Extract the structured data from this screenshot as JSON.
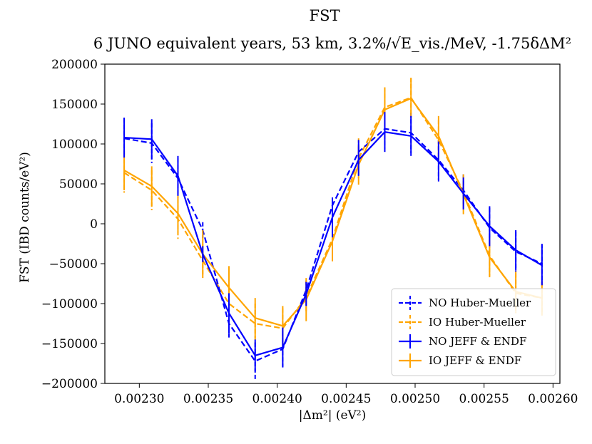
{
  "chart_data": {
    "type": "line",
    "title": "FST",
    "subtitle": "6 JUNO equivalent years, 53 km, 3.2%/√E_vis./MeV, -1.75δΔM²",
    "xlabel": "|Δm²| (eV²)",
    "ylabel": "FST (IBD counts/eV²)",
    "xlim": [
      0.002275,
      0.002605
    ],
    "ylim": [
      -200000,
      200000
    ],
    "xticks": [
      "0.00230",
      "0.00235",
      "0.00240",
      "0.00245",
      "0.00250",
      "0.00255",
      "0.00260"
    ],
    "xtick_values": [
      0.0023,
      0.00235,
      0.0024,
      0.00245,
      0.0025,
      0.00255,
      0.0026
    ],
    "yticks": [
      "200000",
      "150000",
      "100000",
      "50000",
      "0",
      "−50000",
      "−100000",
      "−150000",
      "−200000"
    ],
    "ytick_values": [
      200000,
      150000,
      100000,
      50000,
      0,
      -50000,
      -100000,
      -150000,
      -200000
    ],
    "grid": false,
    "legend_position": "lower-right",
    "x": [
      0.002289,
      0.002309,
      0.002328,
      0.002346,
      0.002365,
      0.002384,
      0.002404,
      0.002421,
      0.00244,
      0.002459,
      0.002478,
      0.002497,
      0.002517,
      0.002535,
      0.002554,
      0.002573,
      0.002592
    ],
    "series": [
      {
        "name": "NO Huber-Mueller",
        "color": "#0000ff",
        "style": "dashed",
        "values": [
          107000,
          101000,
          57000,
          -8000,
          -125000,
          -172000,
          -157000,
          -83000,
          23000,
          90000,
          119000,
          114000,
          80000,
          42000,
          -5000,
          -35000,
          -50000
        ],
        "errors": [
          25000,
          25000,
          25000,
          10000,
          20000,
          23000,
          22000,
          12000,
          8000,
          15000,
          25000,
          25000,
          25000,
          20000,
          25000,
          25000,
          25000
        ]
      },
      {
        "name": "IO Huber-Mueller",
        "color": "#ffa500",
        "style": "dashed",
        "values": [
          64000,
          42000,
          6000,
          -46000,
          -100000,
          -125000,
          -131000,
          -92000,
          -19000,
          82000,
          146000,
          158000,
          105000,
          40000,
          -40000,
          -87000,
          -93000
        ],
        "errors": [
          25000,
          25000,
          25000,
          20000,
          25000,
          25000,
          25000,
          20000,
          25000,
          25000,
          25000,
          25000,
          25000,
          20000,
          25000,
          25000,
          20000
        ]
      },
      {
        "name": "NO JEFF & ENDF",
        "color": "#0000ff",
        "style": "solid",
        "values": [
          108000,
          106000,
          60000,
          -38000,
          -112000,
          -165000,
          -155000,
          -88000,
          8000,
          80000,
          115000,
          110000,
          78000,
          38000,
          -3000,
          -33000,
          -52000
        ],
        "errors": [
          25000,
          25000,
          25000,
          10000,
          25000,
          20000,
          25000,
          15000,
          25000,
          20000,
          25000,
          25000,
          25000,
          20000,
          25000,
          25000,
          25000
        ]
      },
      {
        "name": "IO JEFF & ENDF",
        "color": "#ffa500",
        "style": "solid",
        "values": [
          67000,
          47000,
          13000,
          -38000,
          -80000,
          -118000,
          -128000,
          -95000,
          -22000,
          74000,
          143000,
          157000,
          110000,
          37000,
          -42000,
          -85000,
          -93000
        ],
        "errors": [
          25000,
          25000,
          25000,
          30000,
          27000,
          25000,
          25000,
          27000,
          25000,
          25000,
          25000,
          25000,
          25000,
          25000,
          25000,
          25000,
          22000
        ]
      }
    ]
  }
}
